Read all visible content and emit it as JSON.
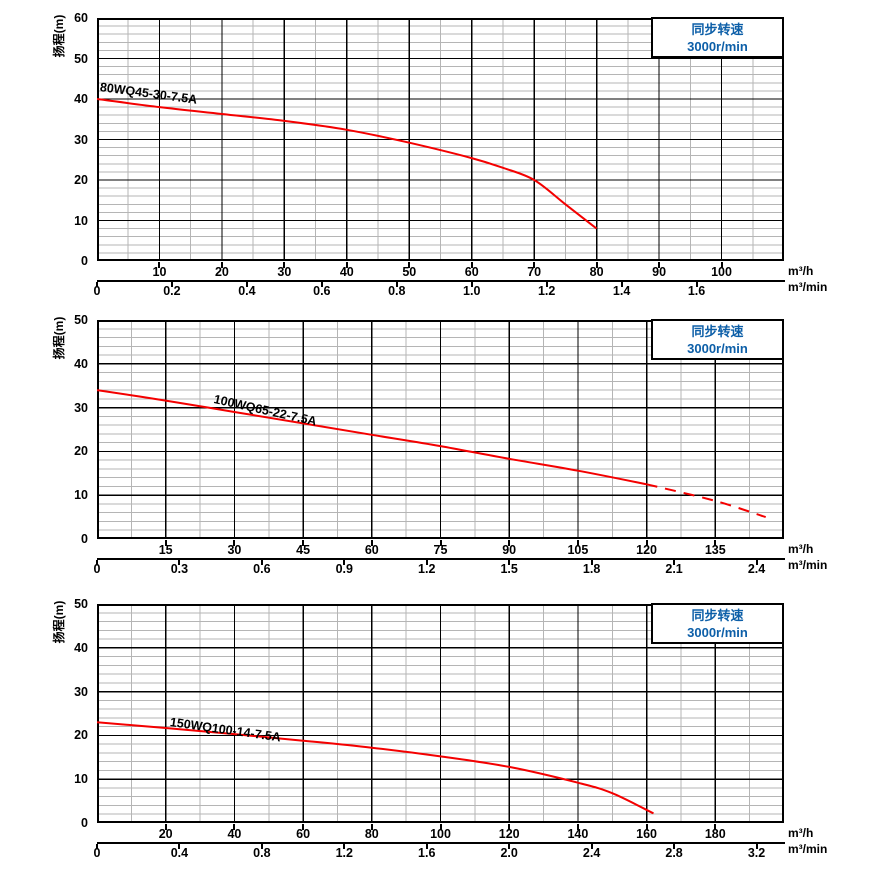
{
  "colors": {
    "curve_red": "#f40000",
    "legend_blue": "#0d5fa8",
    "grid_minor": "#b5b5b5",
    "grid_major": "#000000",
    "text": "#000000",
    "background": "#ffffff"
  },
  "shared": {
    "y_axis_label": "扬程(m)",
    "unit_hour": "m³/h",
    "unit_minute": "m³/min",
    "legend_line1": "同步转速",
    "legend_line2": "3000r/min"
  },
  "chart_data": [
    {
      "type": "line",
      "title": "80WQ45-30-7.5A",
      "ylabel": "扬程(m)",
      "legend": "同步转速 3000r/min",
      "y_max": 60,
      "y_major_step": 10,
      "y_minor_step": 2,
      "x_max_m3h": 110,
      "x_major_step": 10,
      "x_minor_step": 5,
      "y_ticks": [
        0,
        10,
        20,
        30,
        40,
        50,
        60
      ],
      "x_ticks_m3h": [
        10,
        20,
        30,
        40,
        50,
        60,
        70,
        80,
        90,
        100
      ],
      "x_ticks_m3min": [
        "0",
        "0.2",
        "0.4",
        "0.6",
        "0.8",
        "1.0",
        "1.2",
        "1.4",
        "1.6"
      ],
      "m3h_per_m3min": 60,
      "dash_from_m3h": null,
      "series": [
        {
          "name": "80WQ45-30-7.5A",
          "points_flow_m3h_vs_head_m": [
            [
              0,
              40
            ],
            [
              10,
              38
            ],
            [
              20,
              36.3
            ],
            [
              30,
              34.6
            ],
            [
              40,
              32.4
            ],
            [
              50,
              29.2
            ],
            [
              60,
              25.4
            ],
            [
              65,
              23
            ],
            [
              70,
              20
            ],
            [
              75,
              14
            ],
            [
              80,
              8
            ]
          ]
        }
      ]
    },
    {
      "type": "line",
      "title": "100WQ65-22-7.5A",
      "ylabel": "扬程(m)",
      "legend": "同步转速 3000r/min",
      "y_max": 50,
      "y_major_step": 10,
      "y_minor_step": 2,
      "x_max_m3h": 150,
      "x_major_step": 15,
      "x_minor_step": 7.5,
      "y_ticks": [
        0,
        10,
        20,
        30,
        40,
        50
      ],
      "x_ticks_m3h": [
        15,
        30,
        45,
        60,
        75,
        90,
        105,
        120,
        135
      ],
      "x_ticks_m3min": [
        "0",
        "0.3",
        "0.6",
        "0.9",
        "1.2",
        "1.5",
        "1.8",
        "2.1",
        "2.4"
      ],
      "m3h_per_m3min": 60,
      "dash_from_m3h": 126,
      "series": [
        {
          "name": "100WQ65-22-7.5A",
          "points_flow_m3h_vs_head_m": [
            [
              0,
              34
            ],
            [
              15,
              31.6
            ],
            [
              30,
              29
            ],
            [
              45,
              26.4
            ],
            [
              60,
              23.8
            ],
            [
              75,
              21.2
            ],
            [
              90,
              18.3
            ],
            [
              105,
              15.6
            ],
            [
              120,
              12.5
            ],
            [
              135,
              8.7
            ],
            [
              146,
              5
            ]
          ]
        }
      ]
    },
    {
      "type": "line",
      "title": "150WQ100-14-7.5A",
      "ylabel": "扬程(m)",
      "legend": "同步转速 3000r/min",
      "y_max": 50,
      "y_major_step": 10,
      "y_minor_step": 2,
      "x_max_m3h": 200,
      "x_major_step": 20,
      "x_minor_step": 10,
      "y_ticks": [
        0,
        10,
        20,
        30,
        40,
        50
      ],
      "x_ticks_m3h": [
        20,
        40,
        60,
        80,
        100,
        120,
        140,
        160,
        180
      ],
      "x_ticks_m3min": [
        "0",
        "0.4",
        "0.8",
        "1.2",
        "1.6",
        "2.0",
        "2.4",
        "2.8",
        "3.2"
      ],
      "m3h_per_m3min": 60,
      "dash_from_m3h": null,
      "series": [
        {
          "name": "150WQ100-14-7.5A",
          "points_flow_m3h_vs_head_m": [
            [
              0,
              23
            ],
            [
              20,
              21.7
            ],
            [
              40,
              20.3
            ],
            [
              60,
              18.8
            ],
            [
              80,
              17.2
            ],
            [
              100,
              15.2
            ],
            [
              120,
              12.8
            ],
            [
              140,
              9.2
            ],
            [
              150,
              6.8
            ],
            [
              162,
              2.2
            ]
          ]
        }
      ]
    }
  ]
}
